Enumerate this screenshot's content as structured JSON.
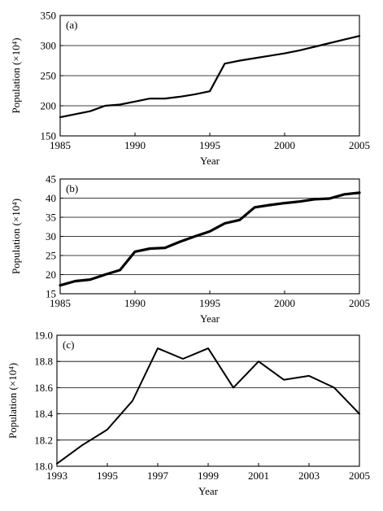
{
  "chart_data": [
    {
      "type": "line",
      "panel_label": "(a)",
      "xlabel": "Year",
      "ylabel": "Population (×10⁴)",
      "xlim": [
        1985,
        2005
      ],
      "ylim": [
        150,
        350
      ],
      "xticks": [
        1985,
        1990,
        1995,
        2000,
        2005
      ],
      "yticks": [
        150,
        200,
        250,
        300,
        350
      ],
      "grid": "horizontal",
      "series": [
        {
          "x": [
            1985,
            1987,
            1988,
            1989,
            1990,
            1991,
            1992,
            1993,
            1994,
            1995,
            1996,
            1997,
            1998,
            1999,
            2000,
            2001,
            2002,
            2003,
            2004,
            2005
          ],
          "y": [
            181,
            191,
            200,
            202,
            207,
            212,
            212,
            215,
            219,
            224,
            270,
            275,
            279,
            283,
            287,
            292,
            298,
            304,
            310,
            316
          ]
        }
      ]
    },
    {
      "type": "line",
      "panel_label": "(b)",
      "xlabel": "Year",
      "ylabel": "Population (×10⁴)",
      "xlim": [
        1985,
        2005
      ],
      "ylim": [
        15,
        45
      ],
      "xticks": [
        1985,
        1990,
        1995,
        2000,
        2005
      ],
      "yticks": [
        15,
        20,
        25,
        30,
        35,
        40,
        45
      ],
      "grid": "horizontal",
      "series": [
        {
          "x": [
            1985,
            1986,
            1987,
            1988,
            1989,
            1990,
            1991,
            1992,
            1993,
            1994,
            1995,
            1996,
            1997,
            1998,
            1999,
            2000,
            2001,
            2002,
            2003,
            2004,
            2005
          ],
          "y": [
            17.2,
            18.3,
            18.7,
            20.0,
            21.2,
            26.0,
            26.8,
            27.0,
            28.6,
            30.0,
            31.3,
            33.4,
            34.3,
            37.6,
            38.2,
            38.7,
            39.1,
            39.7,
            39.9,
            41.0,
            41.4
          ]
        }
      ]
    },
    {
      "type": "line",
      "panel_label": "(c)",
      "xlabel": "Year",
      "ylabel": "Population (×10⁴)",
      "xlim": [
        1993,
        2005
      ],
      "ylim": [
        18.0,
        19.0
      ],
      "xticks": [
        1993,
        1995,
        1997,
        1999,
        2001,
        2003,
        2005
      ],
      "yticks": [
        "18.0",
        "18.2",
        "18.4",
        "18.6",
        "18.8",
        "19.0"
      ],
      "grid": "horizontal",
      "series": [
        {
          "x": [
            1993,
            1994,
            1995,
            1996,
            1997,
            1998,
            1999,
            2000,
            2001,
            2002,
            2003,
            2004,
            2005
          ],
          "y": [
            18.02,
            18.16,
            18.28,
            18.5,
            18.9,
            18.82,
            18.9,
            18.6,
            18.8,
            18.66,
            18.69,
            18.6,
            18.4
          ]
        }
      ]
    }
  ]
}
